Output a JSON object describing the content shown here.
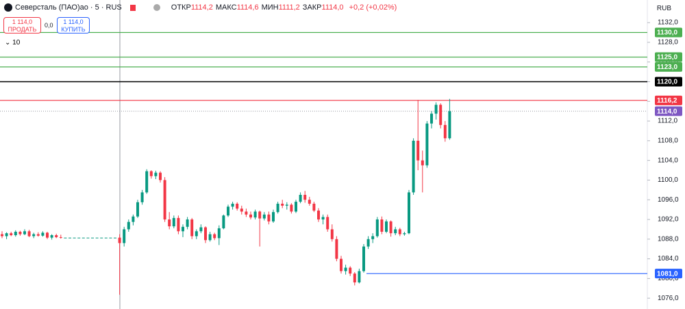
{
  "header": {
    "title": "Северсталь (ПАО)ао · 5 · RUS",
    "stats": [
      {
        "label": "ОТКР",
        "value": "1114,2"
      },
      {
        "label": "МАКС",
        "value": "1114,6"
      },
      {
        "label": "МИН",
        "value": "1111,2"
      },
      {
        "label": "ЗАКР",
        "value": "1114,0"
      }
    ],
    "change": "+0,2 (+0,02%)",
    "currency": "RUB"
  },
  "trade": {
    "sell_price": "1 114,0",
    "sell_label": "ПРОДАТЬ",
    "spread": "0,0",
    "buy_price": "1 114,0",
    "buy_label": "КУПИТЬ",
    "quantity": "10"
  },
  "chart_data": {
    "type": "candlestick",
    "up_color": "#089981",
    "down_color": "#f23645",
    "ylim": [
      1073.8,
      1136.6
    ],
    "yticks": [
      {
        "value": 1076,
        "label": "1076,0"
      },
      {
        "value": 1080,
        "label": "1080,0"
      },
      {
        "value": 1084,
        "label": "1084,0"
      },
      {
        "value": 1088,
        "label": "1088,0"
      },
      {
        "value": 1092,
        "label": "1092,0"
      },
      {
        "value": 1096,
        "label": "1096,0"
      },
      {
        "value": 1100,
        "label": "1100,0"
      },
      {
        "value": 1104,
        "label": "1104,0"
      },
      {
        "value": 1108,
        "label": "1108,0"
      },
      {
        "value": 1112,
        "label": "1112,0"
      },
      {
        "value": 1116,
        "label": "1116,0"
      },
      {
        "value": 1120,
        "label": "1120,0"
      },
      {
        "value": 1124,
        "label": "1124,0"
      },
      {
        "value": 1128,
        "label": "1128,0"
      },
      {
        "value": 1132,
        "label": "1132,0"
      }
    ],
    "levels": [
      {
        "value": 1130,
        "label": "1130,0",
        "color": "#4caf50"
      },
      {
        "value": 1125,
        "label": "1125,0",
        "color": "#4caf50"
      },
      {
        "value": 1123,
        "label": "1123,0",
        "color": "#4caf50"
      },
      {
        "value": 1120,
        "label": "1120,0",
        "color": "#000000"
      },
      {
        "value": 1116.2,
        "label": "1116,2",
        "color": "#f23645"
      },
      {
        "value": 1081,
        "label": "1081,0",
        "color": "#2962ff"
      }
    ],
    "last_price": {
      "value": 1114,
      "label": "1114,0",
      "color": "#7e57c2"
    },
    "ohlc": [
      [
        1089,
        1089.6,
        1088.2,
        1088.6
      ],
      [
        1088.6,
        1089.4,
        1088,
        1089.2
      ],
      [
        1089.2,
        1089.5,
        1088.6,
        1088.8
      ],
      [
        1088.8,
        1089.8,
        1088.5,
        1089.5
      ],
      [
        1089.5,
        1089.7,
        1088.7,
        1089
      ],
      [
        1089,
        1090,
        1088.8,
        1089.6
      ],
      [
        1089.6,
        1089.9,
        1088.4,
        1088.6
      ],
      [
        1088.6,
        1089.3,
        1088.2,
        1089
      ],
      [
        1089,
        1089.4,
        1088.5,
        1088.7
      ],
      [
        1088.7,
        1089.6,
        1088.5,
        1089.3
      ],
      [
        1089.3,
        1089.5,
        1088,
        1088.3
      ],
      [
        1088.3,
        1089,
        1087.9,
        1088.8
      ],
      [
        1088.8,
        1089.1,
        1088.2,
        1088.4
      ],
      [
        1088.4,
        1088.9,
        1088.1,
        1088.3
      ],
      [
        1088.3,
        1088.3,
        1088.3,
        1088.3
      ],
      [
        1088.3,
        1088.3,
        1088.3,
        1088.3
      ],
      [
        1088.3,
        1088.3,
        1088.3,
        1088.3
      ],
      [
        1088.3,
        1088.3,
        1088.3,
        1088.3
      ],
      [
        1088.3,
        1088.3,
        1088.3,
        1088.3
      ],
      [
        1088.3,
        1088.3,
        1088.3,
        1088.3
      ],
      [
        1088.3,
        1088.3,
        1088.3,
        1088.3
      ],
      [
        1088.3,
        1088.3,
        1088.3,
        1088.3
      ],
      [
        1088.3,
        1088.3,
        1088.3,
        1088.3
      ],
      [
        1088.3,
        1088.3,
        1088.3,
        1088.3
      ],
      [
        1088.3,
        1088.3,
        1088.3,
        1088.3
      ],
      [
        1088.3,
        1088.3,
        1088.3,
        1088.3
      ],
      [
        1088.3,
        1089,
        1076.7,
        1087.2
      ],
      [
        1087.2,
        1090.5,
        1086.5,
        1090
      ],
      [
        1090,
        1092,
        1089.5,
        1091.5
      ],
      [
        1091.5,
        1093,
        1090.8,
        1092.6
      ],
      [
        1092.6,
        1096,
        1092.3,
        1095.5
      ],
      [
        1095.5,
        1098,
        1095,
        1097.5
      ],
      [
        1097.5,
        1102.2,
        1097.2,
        1101.8
      ],
      [
        1101.8,
        1102,
        1100.3,
        1100.8
      ],
      [
        1100.8,
        1101.9,
        1100.2,
        1101.5
      ],
      [
        1101.5,
        1101.8,
        1099.5,
        1100
      ],
      [
        1100,
        1100.6,
        1091.5,
        1092
      ],
      [
        1092,
        1093.5,
        1090,
        1090.6
      ],
      [
        1090.6,
        1092.8,
        1090.2,
        1092.3
      ],
      [
        1092.3,
        1092.8,
        1089,
        1089.6
      ],
      [
        1089.6,
        1091,
        1088.4,
        1090.5
      ],
      [
        1090.5,
        1092.5,
        1090,
        1092
      ],
      [
        1092,
        1092.3,
        1088,
        1088.6
      ],
      [
        1088.6,
        1090,
        1088,
        1089.6
      ],
      [
        1089.6,
        1091,
        1089.2,
        1090.4
      ],
      [
        1090.4,
        1090.6,
        1087.2,
        1087.8
      ],
      [
        1087.8,
        1089.5,
        1087.5,
        1089
      ],
      [
        1089,
        1089.3,
        1087.8,
        1088.2
      ],
      [
        1088.2,
        1090.8,
        1086.8,
        1090.2
      ],
      [
        1090.2,
        1093,
        1090,
        1092.8
      ],
      [
        1092.8,
        1095,
        1092.5,
        1094.6
      ],
      [
        1094.6,
        1095.6,
        1094,
        1095.2
      ],
      [
        1095.2,
        1095.5,
        1093.8,
        1094.2
      ],
      [
        1094.2,
        1094.8,
        1093,
        1093.6
      ],
      [
        1093.6,
        1094.2,
        1092.5,
        1093
      ],
      [
        1093,
        1093.6,
        1092,
        1092.4
      ],
      [
        1092.4,
        1094,
        1092,
        1093.6
      ],
      [
        1093.6,
        1093.8,
        1086.5,
        1092.2
      ],
      [
        1092.2,
        1093.5,
        1091.8,
        1093
      ],
      [
        1093,
        1093.6,
        1091,
        1091.6
      ],
      [
        1091.6,
        1094,
        1091.3,
        1093.5
      ],
      [
        1093.5,
        1095.6,
        1093.2,
        1095.2
      ],
      [
        1095.2,
        1096,
        1094.3,
        1094.8
      ],
      [
        1094.8,
        1095.5,
        1094,
        1095
      ],
      [
        1095,
        1095.3,
        1093.2,
        1093.6
      ],
      [
        1093.6,
        1096,
        1093.3,
        1095.6
      ],
      [
        1095.6,
        1097.5,
        1095.3,
        1097
      ],
      [
        1097,
        1097.8,
        1095.4,
        1096
      ],
      [
        1096,
        1096.6,
        1094.8,
        1095.2
      ],
      [
        1095.2,
        1095.6,
        1093.5,
        1093.8
      ],
      [
        1093.8,
        1094.3,
        1091.5,
        1092
      ],
      [
        1092,
        1093,
        1091,
        1092.5
      ],
      [
        1092.5,
        1093,
        1089.5,
        1090
      ],
      [
        1090,
        1091,
        1087.5,
        1088
      ],
      [
        1088,
        1088.6,
        1083.5,
        1084
      ],
      [
        1084,
        1084.6,
        1081,
        1081.5
      ],
      [
        1081.5,
        1082.8,
        1080.8,
        1082.2
      ],
      [
        1082.2,
        1082.5,
        1080.5,
        1081
      ],
      [
        1081,
        1081.3,
        1078.6,
        1079.2
      ],
      [
        1079.2,
        1082,
        1079,
        1081.5
      ],
      [
        1081.5,
        1087,
        1081.2,
        1086.5
      ],
      [
        1086.5,
        1088.6,
        1086,
        1088
      ],
      [
        1088,
        1089.2,
        1087.2,
        1088.6
      ],
      [
        1088.6,
        1092.5,
        1088.3,
        1092
      ],
      [
        1092,
        1092.6,
        1089,
        1089.5
      ],
      [
        1089.5,
        1092,
        1089.2,
        1091.6
      ],
      [
        1091.6,
        1091.8,
        1088.5,
        1089.2
      ],
      [
        1089.2,
        1090.5,
        1088.8,
        1090
      ],
      [
        1090,
        1090.3,
        1088.6,
        1089
      ],
      [
        1089,
        1089.5,
        1088.7,
        1089.2
      ],
      [
        1089.2,
        1098,
        1089,
        1097.5
      ],
      [
        1097.5,
        1108.5,
        1097,
        1108
      ],
      [
        1108,
        1116.3,
        1102,
        1104
      ],
      [
        1104,
        1106,
        1097.5,
        1103
      ],
      [
        1103,
        1112,
        1102.5,
        1111.5
      ],
      [
        1111.5,
        1114,
        1110.5,
        1113.5
      ],
      [
        1113.5,
        1115.8,
        1112.3,
        1115.3
      ],
      [
        1115.3,
        1115.6,
        1110.5,
        1111.2
      ],
      [
        1111.2,
        1112,
        1107.8,
        1108.5
      ],
      [
        1108.5,
        1116.5,
        1108.2,
        1114
      ]
    ]
  }
}
